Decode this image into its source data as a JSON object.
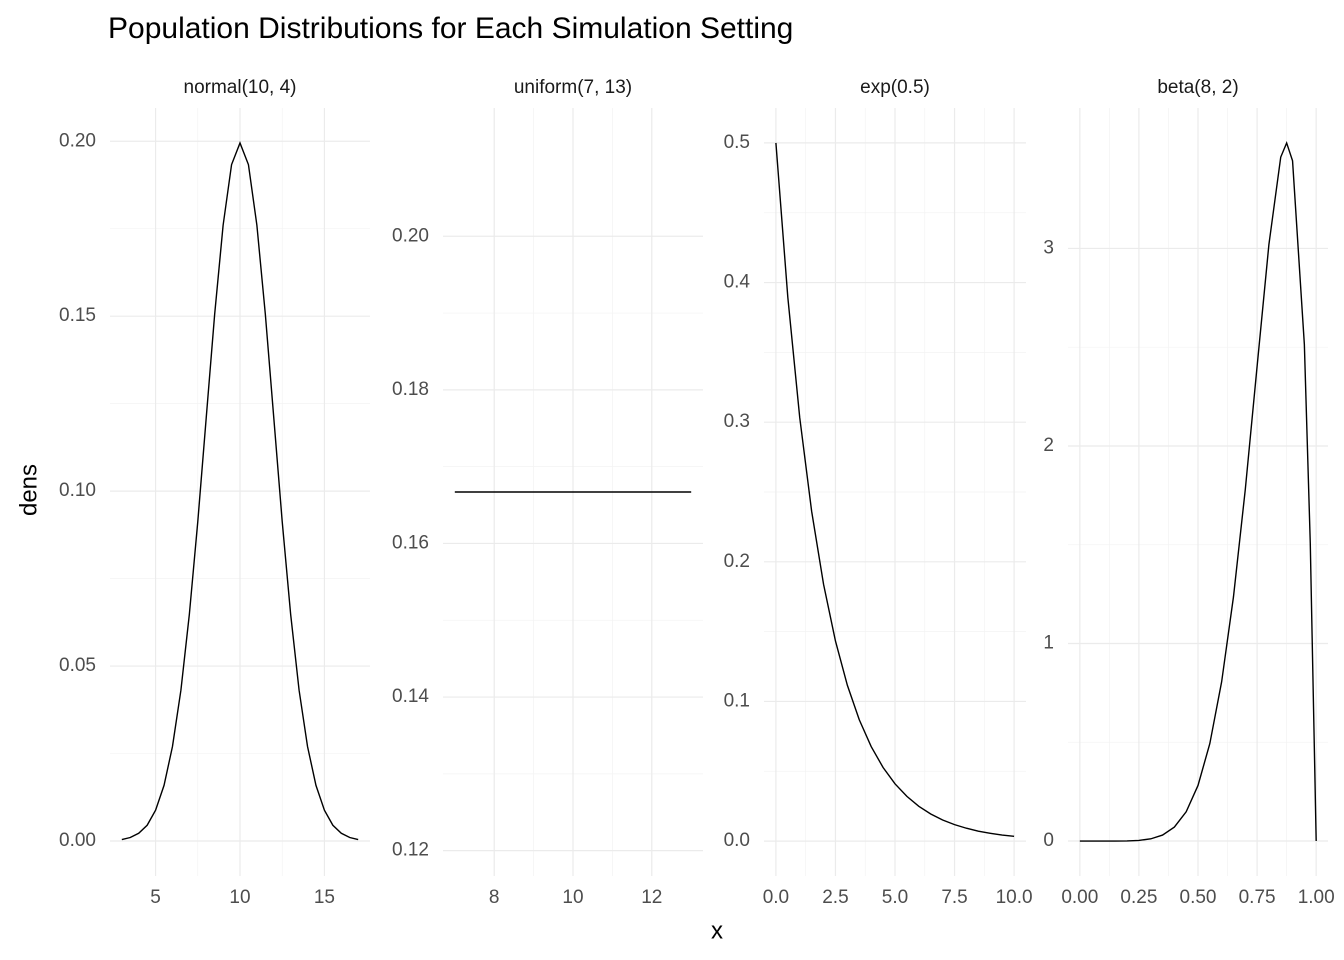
{
  "title": "Population Distributions for Each Simulation Setting",
  "x_label": "x",
  "y_label": "dens",
  "chart_data": [
    {
      "type": "line",
      "title": "normal(10, 4)",
      "x": [
        3,
        3.5,
        4,
        4.5,
        5,
        5.5,
        6,
        6.5,
        7,
        7.5,
        8,
        8.5,
        9,
        9.5,
        10,
        10.5,
        11,
        11.5,
        12,
        12.5,
        13,
        13.5,
        14,
        14.5,
        15,
        15.5,
        16,
        16.5,
        17
      ],
      "values": [
        0.0004,
        0.001,
        0.0022,
        0.0045,
        0.0088,
        0.0159,
        0.027,
        0.0431,
        0.0648,
        0.0913,
        0.121,
        0.1506,
        0.176,
        0.1933,
        0.1995,
        0.1933,
        0.176,
        0.1506,
        0.121,
        0.0913,
        0.0648,
        0.0431,
        0.027,
        0.0159,
        0.0088,
        0.0045,
        0.0022,
        0.001,
        0.0004
      ],
      "color": "#000000",
      "xlim": [
        2.3,
        17.7
      ],
      "xticks": [
        5,
        10,
        15
      ],
      "ylim": [
        -0.01,
        0.2095
      ],
      "yticks": [
        {
          "value": 0,
          "label": "0.00"
        },
        0.05,
        {
          "value": 0.1,
          "label": "0.10"
        },
        0.15,
        {
          "value": 0.2,
          "label": "0.20"
        }
      ],
      "grid": true
    },
    {
      "type": "line",
      "title": "uniform(7, 13)",
      "x": [
        7,
        13
      ],
      "values": [
        0.1667,
        0.1667
      ],
      "color": "#000000",
      "xlim": [
        6.7,
        13.3
      ],
      "xticks": [
        8,
        10,
        12
      ],
      "ylim": [
        0.1167,
        0.2167
      ],
      "yticks": [
        0.12,
        0.14,
        0.16,
        0.18,
        {
          "value": 0.2,
          "label": "0.20"
        }
      ],
      "grid": true
    },
    {
      "type": "line",
      "title": "exp(0.5)",
      "x": [
        0,
        0.5,
        1,
        1.5,
        2,
        2.5,
        3,
        3.5,
        4,
        4.5,
        5,
        5.5,
        6,
        6.5,
        7,
        7.5,
        8,
        8.5,
        9,
        9.5,
        10
      ],
      "values": [
        0.5,
        0.3894,
        0.3033,
        0.2362,
        0.1839,
        0.1433,
        0.1116,
        0.0869,
        0.0677,
        0.0527,
        0.041,
        0.032,
        0.0249,
        0.0194,
        0.0151,
        0.0118,
        0.0092,
        0.0071,
        0.0056,
        0.0043,
        0.0034
      ],
      "color": "#000000",
      "xlim": [
        -0.5,
        10.5
      ],
      "xticks": [
        {
          "value": 0,
          "label": "0.0"
        },
        2.5,
        {
          "value": 5,
          "label": "5.0"
        },
        7.5,
        {
          "value": 10,
          "label": "10.0"
        }
      ],
      "ylim": [
        -0.025,
        0.525
      ],
      "yticks": [
        {
          "value": 0,
          "label": "0.0"
        },
        0.1,
        0.2,
        0.3,
        0.4,
        0.5
      ],
      "grid": true
    },
    {
      "type": "line",
      "title": "beta(8, 2)",
      "x": [
        0,
        0.05,
        0.1,
        0.15,
        0.2,
        0.25,
        0.3,
        0.35,
        0.4,
        0.45,
        0.5,
        0.55,
        0.6,
        0.65,
        0.7,
        0.75,
        0.8,
        0.85,
        0.875,
        0.9,
        0.95,
        0.975,
        1
      ],
      "values": [
        0,
        0,
        0,
        0.0001,
        0.0007,
        0.0033,
        0.011,
        0.0301,
        0.0708,
        0.148,
        0.2813,
        0.4932,
        0.8062,
        1.2353,
        1.7788,
        2.4026,
        3.02,
        3.4623,
        3.534,
        3.4437,
        2.514,
        1.508,
        0
      ],
      "color": "#000000",
      "xlim": [
        -0.05,
        1.05
      ],
      "xticks": [
        {
          "value": 0,
          "label": "0.00"
        },
        0.25,
        {
          "value": 0.5,
          "label": "0.50"
        },
        0.75,
        {
          "value": 1,
          "label": "1.00"
        }
      ],
      "ylim": [
        -0.177,
        3.711
      ],
      "yticks": [
        0,
        1,
        2,
        3
      ],
      "grid": true
    }
  ]
}
